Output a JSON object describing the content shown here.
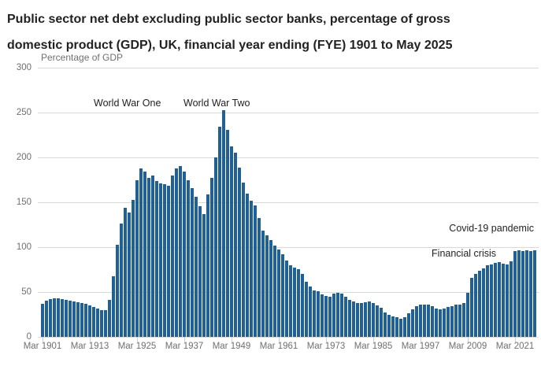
{
  "header": {
    "title_line1": "Public sector net debt excluding public sector banks, percentage of gross",
    "title_line2": "domestic product (GDP), UK, financial year ending (FYE) 1901 to May 2025"
  },
  "chart_data": {
    "type": "bar",
    "title": "Public sector net debt excluding public sector banks, percentage of gross domestic product (GDP), UK, financial year ending (FYE) 1901 to May 2025",
    "unit": "Percentage of GDP",
    "bar_color": "#206095",
    "x_axis": {
      "fye_start": 1901,
      "fye_end": 2025,
      "final_point": "May 2025",
      "tick_every_years": 12,
      "tick_labels": [
        "Mar 1901",
        "Mar 1913",
        "Mar 1925",
        "Mar 1937",
        "Mar 1949",
        "Mar 1961",
        "Mar 1973",
        "Mar 1985",
        "Mar 1997",
        "Mar 2009",
        "Mar 2021"
      ]
    },
    "y_axis": {
      "ticks": [
        0,
        50,
        100,
        150,
        200,
        250,
        300
      ],
      "ylim": [
        0,
        300
      ],
      "grid": true
    },
    "values": [
      36.5,
      40,
      42,
      43,
      43,
      42.2,
      41.5,
      40.5,
      39.5,
      38.5,
      38,
      37,
      35.5,
      33.5,
      31.5,
      30,
      29.5,
      41.5,
      67.5,
      103,
      126,
      144,
      138.5,
      153,
      174.5,
      188,
      184,
      177,
      180,
      173.5,
      171,
      170,
      168.5,
      179.5,
      187.5,
      190.5,
      184,
      174.5,
      166,
      156,
      146,
      137,
      159,
      177,
      200,
      234,
      252.5,
      230.5,
      212,
      205,
      188.5,
      172,
      160,
      152,
      146.5,
      132.5,
      118.5,
      113.5,
      107.5,
      102,
      97,
      92.5,
      85,
      80,
      77.5,
      75.5,
      70,
      61,
      56,
      52,
      50.9,
      47.5,
      45.6,
      44.5,
      48,
      49.4,
      48.5,
      44.5,
      41.5,
      39.2,
      37.7,
      37.7,
      38.6,
      39.2,
      37.7,
      34.8,
      32.7,
      27.5,
      24.6,
      23,
      21.5,
      20.5,
      22,
      26,
      30.4,
      33.9,
      35.7,
      36.2,
      35.7,
      33.9,
      31.5,
      30.5,
      31.6,
      33.3,
      34.2,
      35.7,
      36.2,
      37.5,
      49.4,
      66,
      70,
      73.7,
      76.6,
      79.5,
      80.7,
      82.4,
      83.6,
      82,
      80.5,
      84.5,
      95.5,
      96.5,
      95.3,
      96.2,
      95.5,
      96.5
    ],
    "annotations": [
      {
        "id": "ww1",
        "text": "World War One"
      },
      {
        "id": "ww2",
        "text": "World War Two"
      },
      {
        "id": "covid",
        "text": "Covid-19 pandemic"
      },
      {
        "id": "fincrisis",
        "text": "Financial crisis"
      }
    ]
  },
  "colors": {
    "bar": "#206095",
    "grid": "#d9d9d9",
    "axis_text": "#707071",
    "annotation_text": "#222222",
    "title_text": "#222222",
    "background": "#ffffff"
  }
}
